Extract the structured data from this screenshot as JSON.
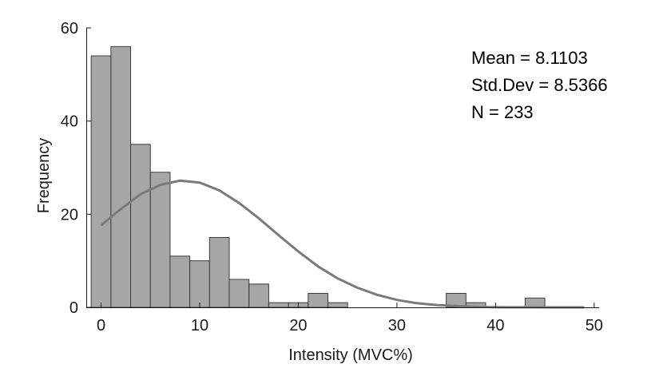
{
  "chart_data": {
    "type": "bar",
    "subtype": "histogram",
    "xlabel": "Intensity (MVC%)",
    "ylabel": "Frequency",
    "xlim": [
      -1.5,
      50.5
    ],
    "ylim": [
      0,
      60
    ],
    "xticks": [
      0,
      10,
      20,
      30,
      40,
      50
    ],
    "yticks": [
      0,
      20,
      40,
      60
    ],
    "grid": false,
    "bins": [
      {
        "x0": -1,
        "x1": 1,
        "value": 54
      },
      {
        "x0": 1,
        "x1": 3,
        "value": 56
      },
      {
        "x0": 3,
        "x1": 5,
        "value": 35
      },
      {
        "x0": 5,
        "x1": 7,
        "value": 29
      },
      {
        "x0": 7,
        "x1": 9,
        "value": 11
      },
      {
        "x0": 9,
        "x1": 11,
        "value": 10
      },
      {
        "x0": 11,
        "x1": 13,
        "value": 15
      },
      {
        "x0": 13,
        "x1": 15,
        "value": 6
      },
      {
        "x0": 15,
        "x1": 17,
        "value": 5
      },
      {
        "x0": 17,
        "x1": 19,
        "value": 1
      },
      {
        "x0": 19,
        "x1": 21,
        "value": 1
      },
      {
        "x0": 21,
        "x1": 23,
        "value": 3
      },
      {
        "x0": 23,
        "x1": 25,
        "value": 1
      },
      {
        "x0": 25,
        "x1": 27,
        "value": 0
      },
      {
        "x0": 27,
        "x1": 29,
        "value": 0
      },
      {
        "x0": 29,
        "x1": 31,
        "value": 0
      },
      {
        "x0": 31,
        "x1": 33,
        "value": 0
      },
      {
        "x0": 33,
        "x1": 35,
        "value": 0
      },
      {
        "x0": 35,
        "x1": 37,
        "value": 3
      },
      {
        "x0": 37,
        "x1": 39,
        "value": 1
      },
      {
        "x0": 39,
        "x1": 41,
        "value": 0
      },
      {
        "x0": 41,
        "x1": 43,
        "value": 0
      },
      {
        "x0": 43,
        "x1": 45,
        "value": 2
      }
    ],
    "fit_curve": {
      "type": "normal",
      "x": [
        0,
        2,
        4,
        6,
        8,
        10,
        12,
        14,
        16,
        18,
        20,
        22,
        24,
        26,
        28,
        30,
        32,
        34,
        36,
        38,
        40,
        42,
        44,
        46,
        48,
        49
      ],
      "y": [
        17.6,
        21.1,
        24.3,
        26.3,
        27.2,
        26.8,
        25.1,
        22.4,
        19.1,
        15.5,
        12.0,
        8.8,
        6.2,
        4.2,
        2.7,
        1.6,
        0.9,
        0.5,
        0.3,
        0.1,
        0.05,
        0.02,
        0.01,
        0.0,
        0.0,
        0.0
      ]
    },
    "annotations": [
      "Mean = 8.1103",
      "Std.Dev = 8.5366",
      "N = 233"
    ],
    "colors": {
      "bar_fill": "#a6a6a6",
      "bar_edge": "#3c3c3c",
      "curve": "#7a7a7a",
      "axis": "#1a1a1a",
      "text": "#000000"
    }
  }
}
